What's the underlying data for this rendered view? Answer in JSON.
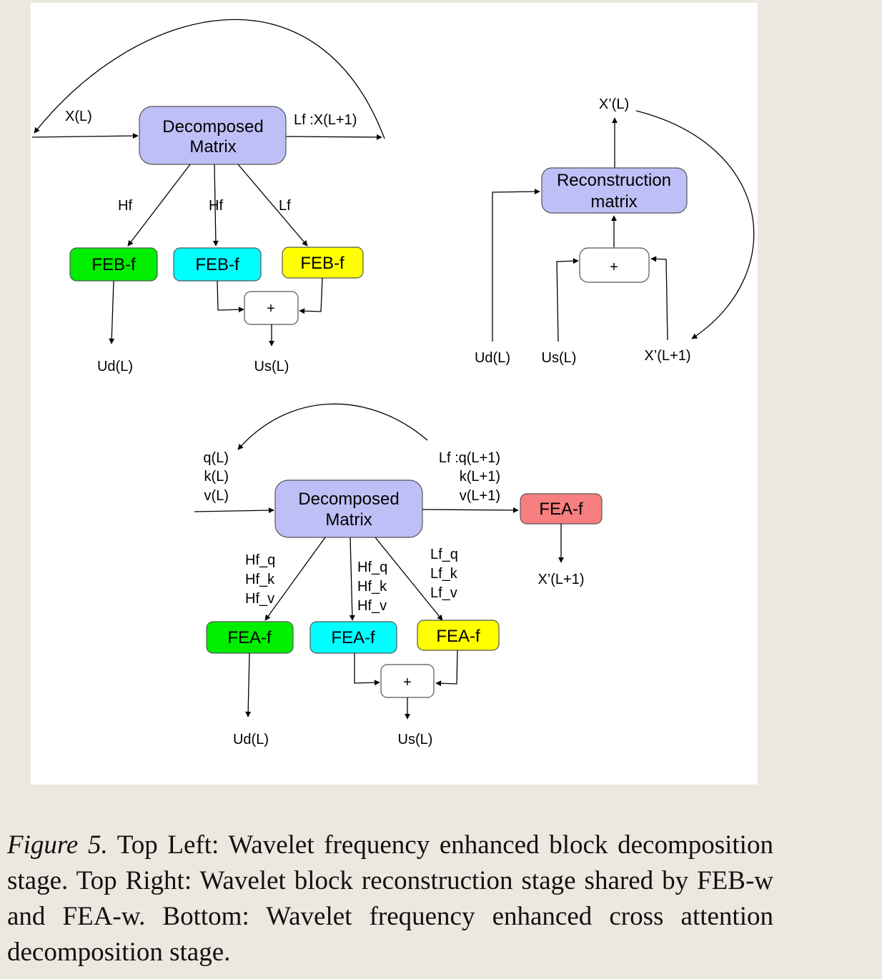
{
  "labels": {
    "tl_input": "X(L)",
    "tl_lf_out": "Lf :X(L+1)",
    "tl_edge_hf1": "Hf",
    "tl_edge_hf2": "Hf",
    "tl_edge_lf": "Lf",
    "tl_out_ud": "Ud(L)",
    "tl_out_us": "Us(L)",
    "tr_output": "X’(L)",
    "tr_in_ud": "Ud(L)",
    "tr_in_us": "Us(L)",
    "tr_in_x": "X’(L+1)",
    "b_in_q": "q(L)",
    "b_in_k": "k(L)",
    "b_in_v": "v(L)",
    "b_lf_q": "Lf :q(L+1)",
    "b_lf_k": "k(L+1)",
    "b_lf_v": "v(L+1)",
    "b_e1_q": "Hf_q",
    "b_e1_k": "Hf_k",
    "b_e1_v": "Hf_v",
    "b_e2_q": "Hf_q",
    "b_e2_k": "Hf_k",
    "b_e2_v": "Hf_v",
    "b_e3_q": "Lf_q",
    "b_e3_k": "Lf_k",
    "b_e3_v": "Lf_v",
    "b_out_ud": "Ud(L)",
    "b_out_us": "Us(L)",
    "b_out_x": "X’(L+1)"
  },
  "boxes": {
    "tl_decomp_1": "Decomposed",
    "tl_decomp_2": "Matrix",
    "tl_feb_green": "FEB-f",
    "tl_feb_cyan": "FEB-f",
    "tl_feb_yellow": "FEB-f",
    "tl_plus": "+",
    "tr_recon_1": "Reconstruction",
    "tr_recon_2": "matrix",
    "tr_plus": "+",
    "b_decomp_1": "Decomposed",
    "b_decomp_2": "Matrix",
    "b_fea_red": "FEA-f",
    "b_fea_green": "FEA-f",
    "b_fea_cyan": "FEA-f",
    "b_fea_yellow": "FEA-f",
    "b_plus": "+"
  },
  "colors": {
    "matrix": "#bfbff7",
    "green": "#00ee00",
    "cyan": "#00ffff",
    "yellow": "#ffff00",
    "red": "#f77f7f",
    "plus": "#ffffff"
  },
  "caption": {
    "figure": "Figure 5.",
    "text": "Top Left: Wavelet frequency enhanced block decomposition stage. Top Right: Wavelet block reconstruction stage shared by FEB-w and FEA-w. Bottom: Wavelet frequency enhanced cross attention decomposition stage."
  }
}
